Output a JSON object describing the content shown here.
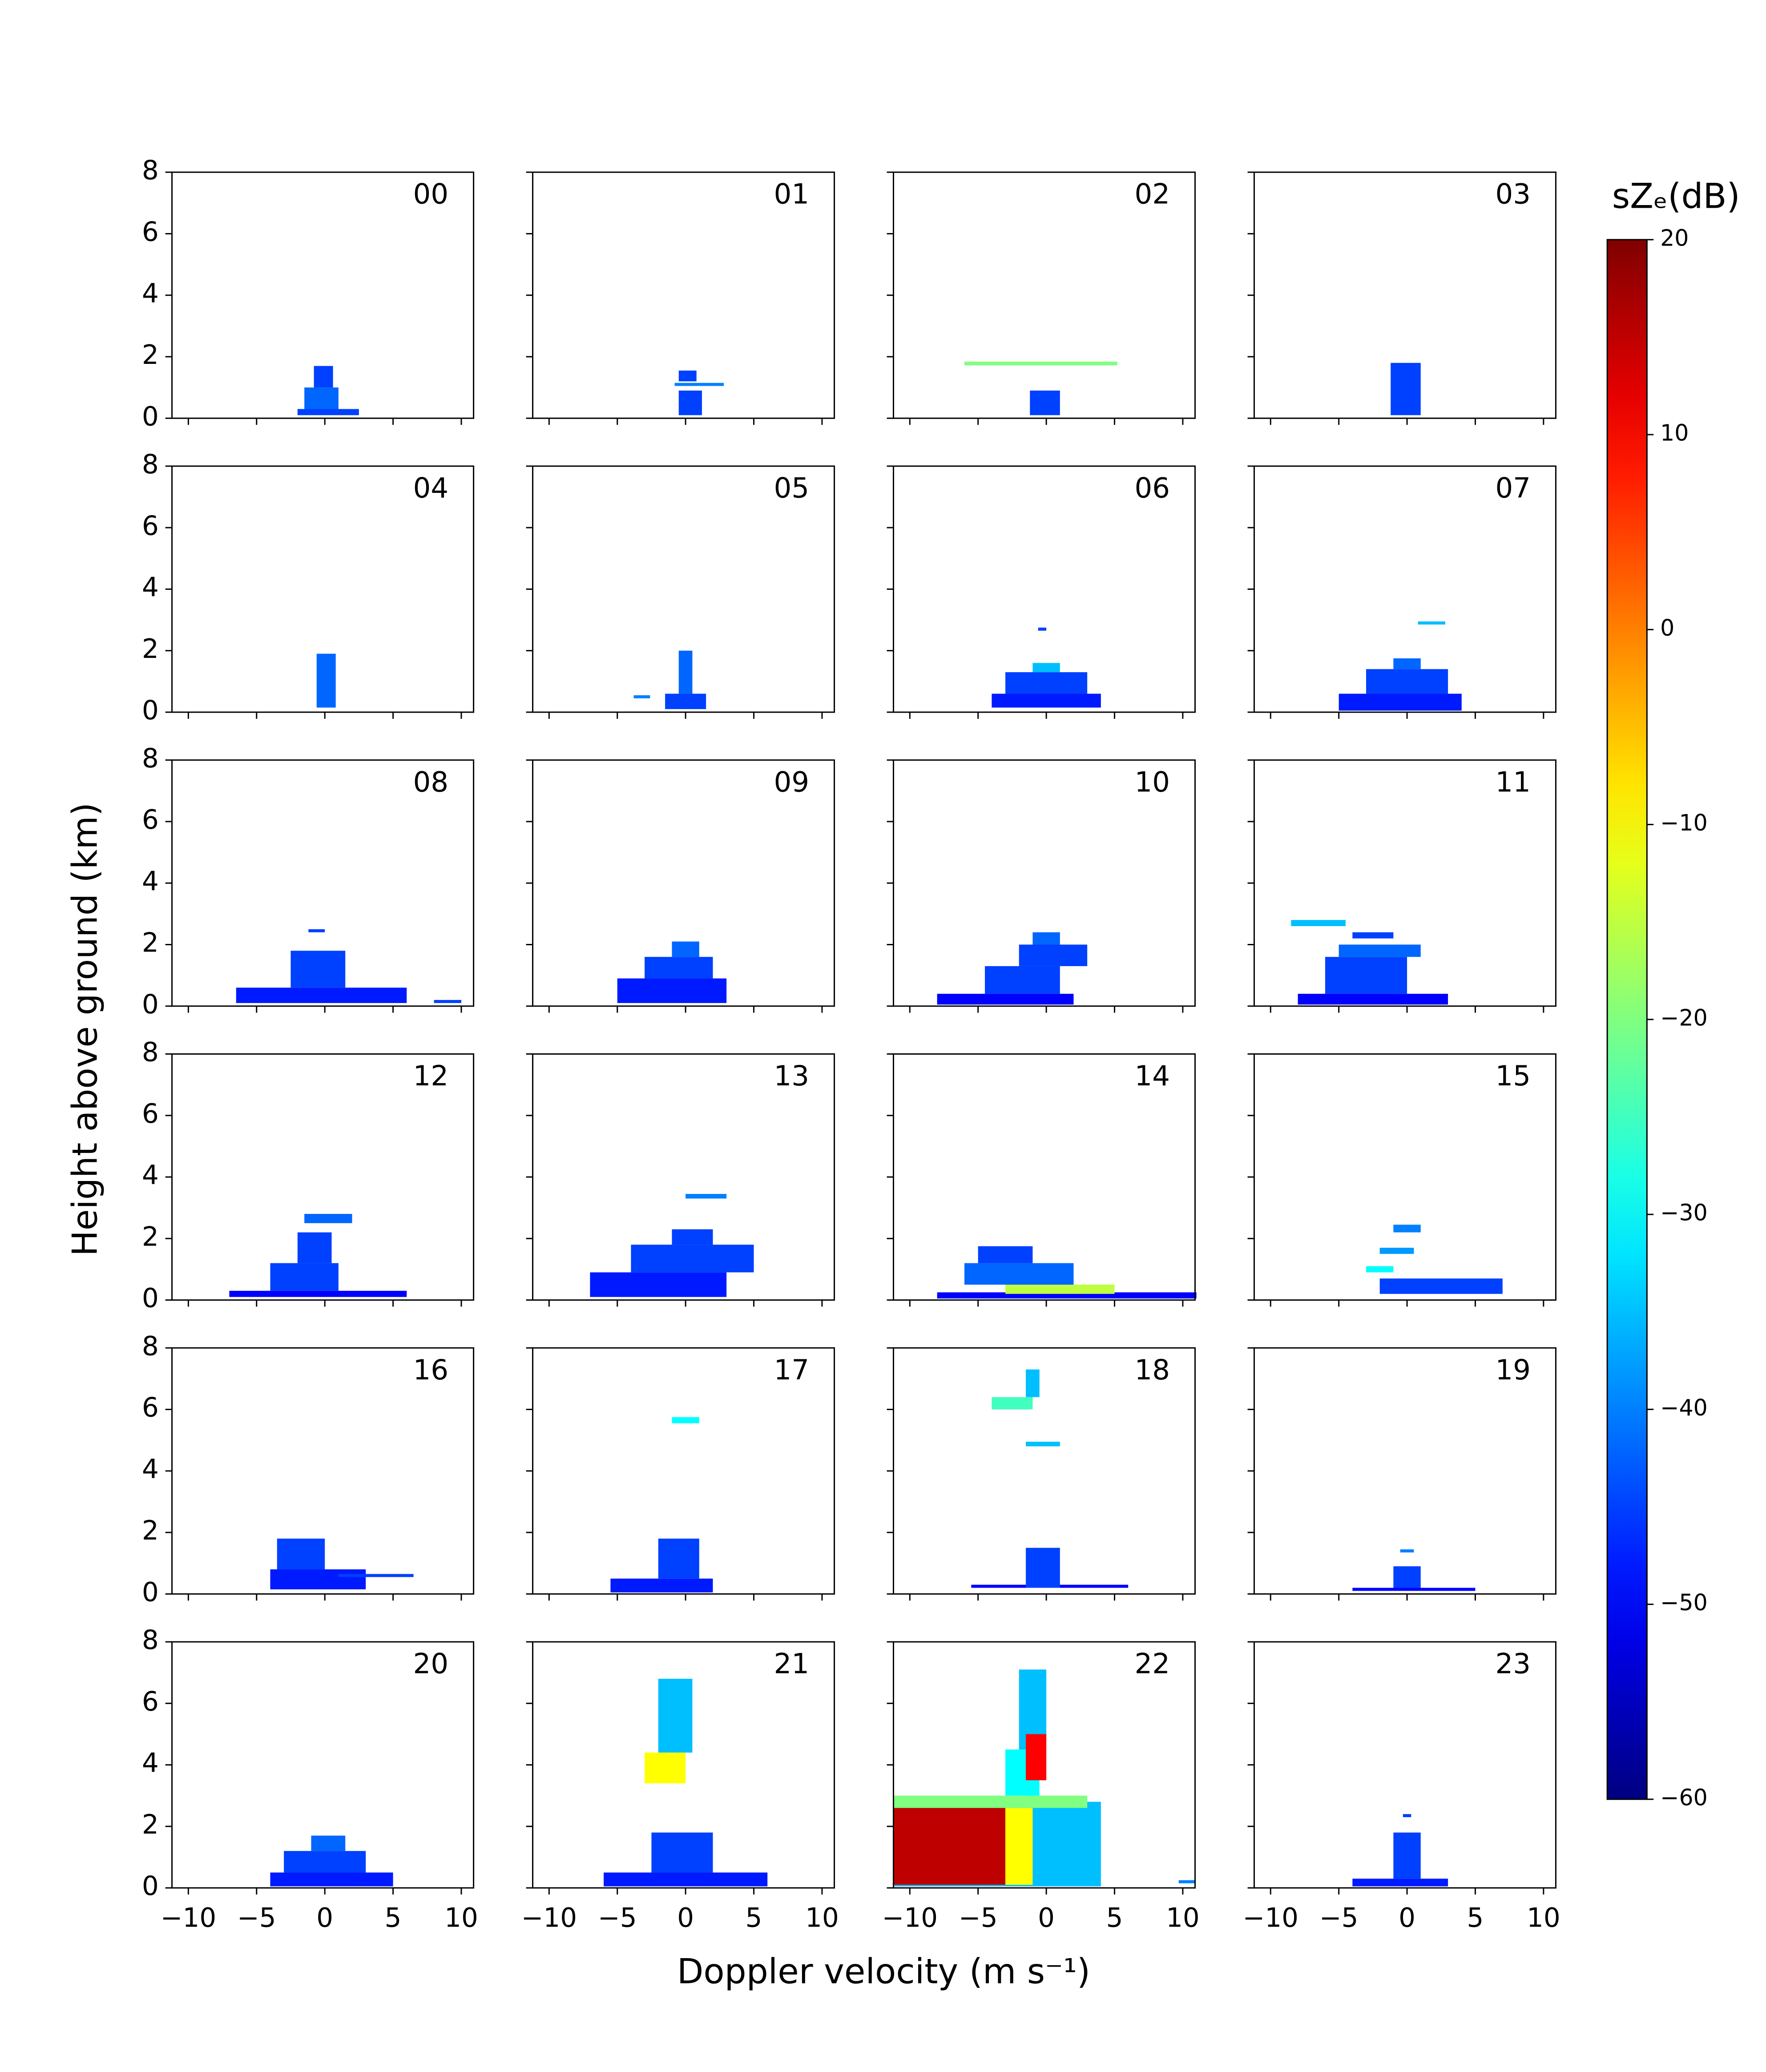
{
  "chart_data": {
    "type": "spectrogram-grid",
    "xlabel": "Doppler velocity (m s⁻¹)",
    "ylabel": "Height above ground (km)",
    "colorbar_label": "sZₑ(dB)",
    "colormap": "jet",
    "xlim": [
      -11.2,
      10.9
    ],
    "xticks": [
      {
        "value": -10,
        "label": "−10"
      },
      {
        "value": -5,
        "label": "−5"
      },
      0,
      5,
      10
    ],
    "ylim": [
      0,
      8
    ],
    "yticks": [
      0,
      2,
      4,
      6,
      8
    ],
    "clim": [
      -60,
      20
    ],
    "cticks": [
      20,
      10,
      0,
      {
        "value": -10,
        "label": "−10"
      },
      {
        "value": -20,
        "label": "−20"
      },
      {
        "value": -30,
        "label": "−30"
      },
      {
        "value": -40,
        "label": "−40"
      },
      {
        "value": -50,
        "label": "−50"
      },
      {
        "value": -60,
        "label": "−60"
      }
    ],
    "panels": [
      {
        "title": "00",
        "patches": [
          [
            -2,
            2.5,
            0.1,
            0.3,
            -45
          ],
          [
            -1.5,
            1,
            0.3,
            1.0,
            -42
          ],
          [
            -0.8,
            0.6,
            1.0,
            1.7,
            -45
          ]
        ]
      },
      {
        "title": "01",
        "patches": [
          [
            -0.5,
            1.2,
            0.1,
            0.9,
            -45
          ],
          [
            -0.8,
            2.8,
            1.05,
            1.15,
            -40
          ],
          [
            -0.5,
            0.8,
            1.2,
            1.55,
            -45
          ]
        ]
      },
      {
        "title": "02",
        "patches": [
          [
            -1.2,
            1,
            0.1,
            0.9,
            -45
          ],
          [
            -6,
            5.2,
            1.72,
            1.84,
            -20
          ]
        ]
      },
      {
        "title": "03",
        "patches": [
          [
            -1.2,
            1,
            0.1,
            1.8,
            -45
          ]
        ]
      },
      {
        "title": "04",
        "patches": [
          [
            -0.6,
            0.8,
            0.15,
            1.9,
            -42
          ]
        ]
      },
      {
        "title": "05",
        "patches": [
          [
            -1.5,
            1.5,
            0.1,
            0.6,
            -45
          ],
          [
            -0.5,
            0.5,
            0.6,
            2.0,
            -42
          ],
          [
            -3.8,
            -2.6,
            0.45,
            0.55,
            -40
          ]
        ]
      },
      {
        "title": "06",
        "patches": [
          [
            -4,
            4,
            0.15,
            0.6,
            -48
          ],
          [
            -3,
            3,
            0.6,
            1.3,
            -45
          ],
          [
            -1,
            1,
            1.3,
            1.6,
            -35
          ],
          [
            -0.6,
            0,
            2.65,
            2.75,
            -45
          ]
        ]
      },
      {
        "title": "07",
        "patches": [
          [
            -5,
            4,
            0.05,
            0.6,
            -48
          ],
          [
            -3,
            3,
            0.6,
            1.4,
            -45
          ],
          [
            -1,
            1,
            1.4,
            1.75,
            -42
          ],
          [
            0.8,
            2.8,
            2.85,
            2.95,
            -35
          ]
        ]
      },
      {
        "title": "08",
        "patches": [
          [
            -6.5,
            6,
            0.1,
            0.6,
            -48
          ],
          [
            -2.5,
            1.5,
            0.6,
            1.8,
            -45
          ],
          [
            -1.2,
            0,
            2.4,
            2.5,
            -45
          ],
          [
            8,
            10,
            0.1,
            0.2,
            -45
          ]
        ]
      },
      {
        "title": "09",
        "patches": [
          [
            -5,
            3,
            0.1,
            0.9,
            -48
          ],
          [
            -3,
            2,
            0.9,
            1.6,
            -45
          ],
          [
            -1,
            1,
            1.6,
            2.1,
            -42
          ]
        ]
      },
      {
        "title": "10",
        "patches": [
          [
            -8,
            2,
            0.05,
            0.4,
            -50
          ],
          [
            -4.5,
            1,
            0.4,
            1.3,
            -45
          ],
          [
            -2,
            3,
            1.3,
            2.0,
            -45
          ],
          [
            -1,
            1,
            2.0,
            2.4,
            -42
          ]
        ]
      },
      {
        "title": "11",
        "patches": [
          [
            -8,
            3,
            0.05,
            0.4,
            -50
          ],
          [
            -6,
            0,
            0.4,
            1.6,
            -45
          ],
          [
            -5,
            1,
            1.6,
            2.0,
            -42
          ],
          [
            -8.5,
            -4.5,
            2.6,
            2.8,
            -35
          ],
          [
            -4,
            -1,
            2.2,
            2.4,
            -45
          ]
        ]
      },
      {
        "title": "12",
        "patches": [
          [
            -7,
            6,
            0.1,
            0.3,
            -50
          ],
          [
            -4,
            1,
            0.3,
            1.2,
            -45
          ],
          [
            -2,
            0.5,
            1.2,
            2.2,
            -45
          ],
          [
            -1.5,
            2,
            2.5,
            2.8,
            -42
          ]
        ]
      },
      {
        "title": "13",
        "patches": [
          [
            -7,
            3,
            0.1,
            0.9,
            -48
          ],
          [
            -4,
            5,
            0.9,
            1.8,
            -45
          ],
          [
            -1,
            2,
            1.8,
            2.3,
            -45
          ],
          [
            0,
            3,
            3.3,
            3.45,
            -40
          ]
        ]
      },
      {
        "title": "14",
        "patches": [
          [
            -8,
            11,
            0.05,
            0.25,
            -50
          ],
          [
            -6,
            2,
            0.5,
            1.2,
            -42
          ],
          [
            -5,
            -1,
            1.2,
            1.75,
            -45
          ],
          [
            -3,
            5,
            0.2,
            0.5,
            -15
          ]
        ]
      },
      {
        "title": "15",
        "patches": [
          [
            -2,
            7,
            0.2,
            0.7,
            -45
          ],
          [
            -1,
            1,
            2.2,
            2.45,
            -40
          ],
          [
            -2,
            0.5,
            1.5,
            1.7,
            -38
          ],
          [
            -3,
            -1,
            0.9,
            1.1,
            -30
          ]
        ]
      },
      {
        "title": "16",
        "patches": [
          [
            -4,
            3,
            0.15,
            0.8,
            -48
          ],
          [
            -3.5,
            0,
            0.8,
            1.8,
            -45
          ],
          [
            1,
            6.5,
            0.55,
            0.65,
            -45
          ]
        ]
      },
      {
        "title": "17",
        "patches": [
          [
            -5.5,
            2,
            0.05,
            0.5,
            -48
          ],
          [
            -2,
            1,
            0.5,
            1.8,
            -45
          ],
          [
            -1,
            1,
            5.55,
            5.75,
            -30
          ]
        ]
      },
      {
        "title": "18",
        "patches": [
          [
            -5.5,
            6,
            0.2,
            0.3,
            -50
          ],
          [
            -1.5,
            1,
            0.2,
            1.5,
            -45
          ],
          [
            -4,
            -1,
            6.0,
            6.4,
            -25
          ],
          [
            -1.5,
            -0.5,
            6.4,
            7.3,
            -35
          ],
          [
            -1.5,
            1,
            4.8,
            4.95,
            -35
          ]
        ]
      },
      {
        "title": "19",
        "patches": [
          [
            -4,
            5,
            0.1,
            0.2,
            -50
          ],
          [
            -1,
            1,
            0.2,
            0.9,
            -45
          ],
          [
            -0.5,
            0.5,
            1.35,
            1.45,
            -40
          ]
        ]
      },
      {
        "title": "20",
        "patches": [
          [
            -4,
            5,
            0.05,
            0.5,
            -48
          ],
          [
            -3,
            3,
            0.5,
            1.2,
            -45
          ],
          [
            -1,
            1.5,
            1.2,
            1.7,
            -42
          ]
        ]
      },
      {
        "title": "21",
        "patches": [
          [
            -6,
            6,
            0.05,
            0.5,
            -48
          ],
          [
            -2.5,
            2,
            0.5,
            1.8,
            -45
          ],
          [
            -2,
            0.5,
            4.4,
            6.8,
            -35
          ],
          [
            -3,
            0,
            3.4,
            4.4,
            -10
          ]
        ]
      },
      {
        "title": "22",
        "patches": [
          [
            -11.2,
            4,
            0.05,
            2.8,
            -35
          ],
          [
            -11.2,
            -3,
            0.1,
            2.6,
            15
          ],
          [
            -3,
            -1,
            0.1,
            2.6,
            -10
          ],
          [
            -11.2,
            3,
            2.6,
            3.0,
            -20
          ],
          [
            -3,
            -0.5,
            3.0,
            4.5,
            -30
          ],
          [
            -2,
            0,
            4.5,
            7.1,
            -35
          ],
          [
            -1.5,
            0,
            3.5,
            5,
            10
          ],
          [
            9.7,
            10.9,
            0.15,
            0.25,
            -40
          ]
        ]
      },
      {
        "title": "23",
        "patches": [
          [
            -4,
            3,
            0.05,
            0.3,
            -48
          ],
          [
            -1,
            1,
            0.3,
            1.8,
            -45
          ],
          [
            -0.3,
            0.3,
            2.3,
            2.4,
            -45
          ]
        ]
      }
    ]
  }
}
